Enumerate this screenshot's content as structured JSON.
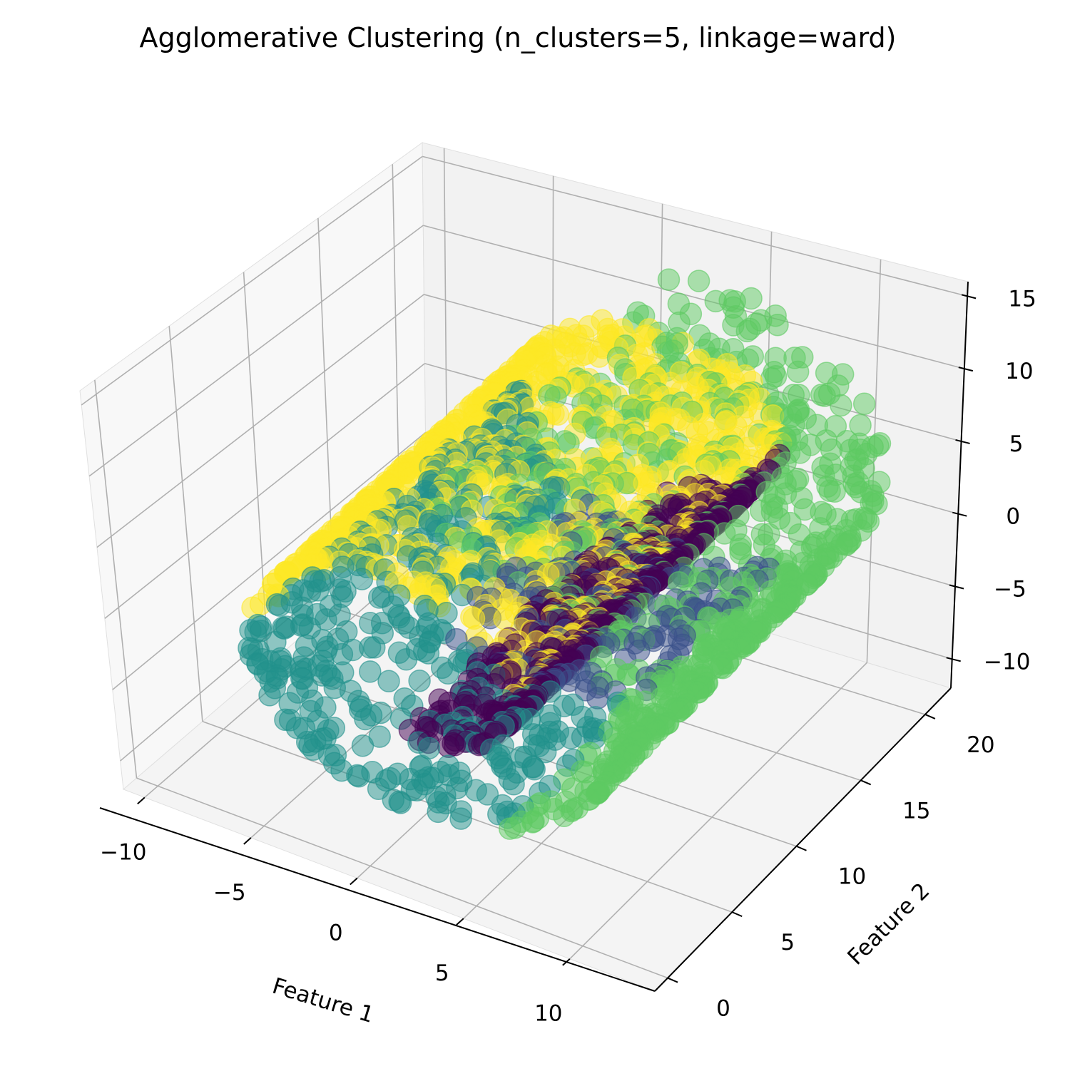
{
  "chart_data": {
    "type": "scatter",
    "projection": "3d",
    "title": "Agglomerative Clustering (n_clusters=5, linkage=ward)",
    "xlabel": "Feature 1",
    "ylabel": "Feature 2",
    "zlabel": "",
    "x_ticks": [
      "−10",
      "−5",
      "0",
      "5",
      "10"
    ],
    "y_ticks": [
      "0",
      "5",
      "10",
      "15",
      "20"
    ],
    "z_ticks": [
      "−10",
      "−5",
      "0",
      "5",
      "10",
      "15"
    ],
    "xlim": [
      -11,
      14
    ],
    "ylim": [
      -1,
      22
    ],
    "zlim": [
      -12,
      16
    ],
    "grid": true,
    "colormap": "viridis",
    "point_alpha": 0.5,
    "clusters": [
      {
        "label": 0,
        "color": "#440154"
      },
      {
        "label": 1,
        "color": "#3b528b"
      },
      {
        "label": 2,
        "color": "#21918c"
      },
      {
        "label": 3,
        "color": "#5ec962"
      },
      {
        "label": 4,
        "color": "#fde725"
      }
    ]
  }
}
